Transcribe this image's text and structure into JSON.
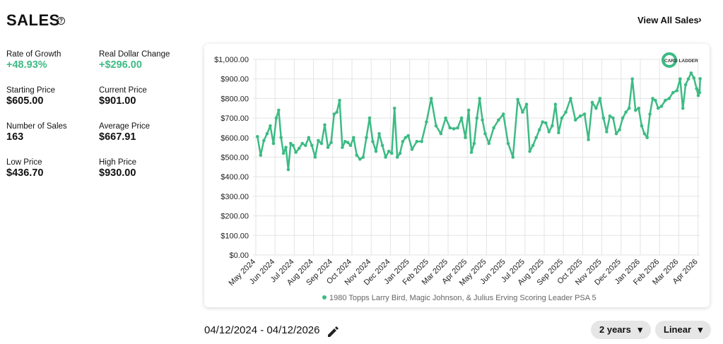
{
  "header": {
    "title": "SALES",
    "link": "View All Sales"
  },
  "stats": [
    {
      "label": "Rate of Growth",
      "value": "+48.93%"
    },
    {
      "label": "Real Dollar Change",
      "value": "+$296.00"
    },
    {
      "label": "Starting Price",
      "value": "$605.00"
    },
    {
      "label": "Current Price",
      "value": "$901.00"
    },
    {
      "label": "Number of Sales",
      "value": "163"
    },
    {
      "label": "Average Price",
      "value": "$667.91"
    },
    {
      "label": "Low Price",
      "value": "$436.70"
    },
    {
      "label": "High Price",
      "value": "$930.00"
    }
  ],
  "chart_data": {
    "type": "line",
    "logo": "CARD LADDER",
    "x": [
      "May 2024",
      "May 2024",
      "May 2024",
      "May 2024",
      "May 2024",
      "May 2024",
      "Jun 2024",
      "Jun 2024",
      "Jun 2024",
      "Jun 2024",
      "Jun 2024",
      "Jun 2024",
      "Jun 2024",
      "Jun 2024",
      "Jul 2024",
      "Jul 2024",
      "Jul 2024",
      "Jul 2024",
      "Jul 2024",
      "Jul 2024",
      "Aug 2024",
      "Aug 2024",
      "Aug 2024",
      "Aug 2024",
      "Aug 2024",
      "Aug 2024",
      "Sep 2024",
      "Sep 2024",
      "Sep 2024",
      "Sep 2024",
      "Sep 2024",
      "Sep 2024",
      "Sep 2024",
      "Oct 2024",
      "Oct 2024",
      "Oct 2024",
      "Oct 2024",
      "Oct 2024",
      "Oct 2024",
      "Nov 2024",
      "Nov 2024",
      "Nov 2024",
      "Nov 2024",
      "Nov 2024",
      "Nov 2024",
      "Dec 2024",
      "Dec 2024",
      "Dec 2024",
      "Dec 2024",
      "Dec 2024",
      "Dec 2024",
      "Dec 2024",
      "Jan 2025",
      "Jan 2025",
      "Jan 2025",
      "Jan 2025",
      "Feb 2025",
      "Feb 2025",
      "Feb 2025",
      "Feb 2025",
      "Mar 2025",
      "Mar 2025",
      "Mar 2025",
      "Mar 2025",
      "Mar 2025",
      "Apr 2025",
      "Apr 2025",
      "Apr 2025",
      "Apr 2025",
      "Apr 2025",
      "Apr 2025",
      "Apr 2025",
      "May 2025",
      "May 2025",
      "May 2025",
      "May 2025",
      "Jun 2025",
      "Jun 2025",
      "Jun 2025",
      "Jun 2025",
      "Jul 2025",
      "Jul 2025",
      "Jul 2025",
      "Jul 2025",
      "Jul 2025",
      "Jul 2025",
      "Aug 2025",
      "Aug 2025",
      "Aug 2025",
      "Aug 2025",
      "Aug 2025",
      "Aug 2025",
      "Sep 2025",
      "Sep 2025",
      "Sep 2025",
      "Sep 2025",
      "Oct 2025",
      "Oct 2025",
      "Oct 2025",
      "Oct 2025",
      "Oct 2025",
      "Nov 2025",
      "Nov 2025",
      "Nov 2025",
      "Nov 2025",
      "Nov 2025",
      "Nov 2025",
      "Dec 2025",
      "Dec 2025",
      "Dec 2025",
      "Dec 2025",
      "Dec 2025",
      "Dec 2025",
      "Jan 2026",
      "Jan 2026",
      "Jan 2026",
      "Jan 2026",
      "Jan 2026",
      "Jan 2026",
      "Jan 2026",
      "Feb 2026",
      "Feb 2026",
      "Feb 2026",
      "Feb 2026",
      "Feb 2026",
      "Mar 2026",
      "Mar 2026",
      "Mar 2026",
      "Mar 2026",
      "Mar 2026",
      "Mar 2026",
      "Mar 2026",
      "Apr 2026",
      "Apr 2026",
      "Apr 2026",
      "Apr 2026"
    ],
    "series": [
      {
        "name": "1980 Topps Larry Bird, Magic Johnson, & Julius Erving Scoring Leader PSA 5",
        "color": "#3dbb84",
        "values": [
          605,
          510,
          585,
          620,
          660,
          570,
          700,
          740,
          600,
          520,
          550,
          436.7,
          570,
          560,
          525,
          545,
          570,
          560,
          600,
          560,
          500,
          585,
          570,
          665,
          550,
          575,
          720,
          730,
          790,
          550,
          580,
          575,
          560,
          600,
          510,
          490,
          500,
          600,
          700,
          580,
          530,
          620,
          560,
          500,
          530,
          520,
          750,
          500,
          520,
          580,
          600,
          610,
          540,
          580,
          580,
          680,
          800,
          660,
          620,
          700,
          650,
          645,
          650,
          700,
          600,
          740,
          525,
          570,
          700,
          800,
          690,
          620,
          570,
          650,
          690,
          720,
          570,
          500,
          795,
          730,
          770,
          530,
          560,
          600,
          640,
          680,
          675,
          630,
          660,
          770,
          625,
          700,
          730,
          800,
          690,
          710,
          720,
          590,
          780,
          750,
          800,
          700,
          630,
          710,
          700,
          620,
          640,
          700,
          730,
          750,
          900,
          740,
          750,
          660,
          620,
          600,
          720,
          800,
          790,
          750,
          760,
          790,
          800,
          830,
          840,
          900,
          750,
          870,
          900,
          930,
          905,
          850,
          815,
          840,
          830,
          901
        ]
      }
    ],
    "xticks": [
      "May 2024",
      "Jun 2024",
      "Jul 2024",
      "Aug 2024",
      "Sep 2024",
      "Oct 2024",
      "Nov 2024",
      "Dec 2024",
      "Jan 2025",
      "Feb 2025",
      "Mar 2025",
      "Apr 2025",
      "May 2025",
      "Jun 2025",
      "Jul 2025",
      "Aug 2025",
      "Sep 2025",
      "Oct 2025",
      "Nov 2025",
      "Dec 2025",
      "Jan 2026",
      "Feb 2026",
      "Mar 2026",
      "Apr 2026"
    ],
    "ylim": [
      0,
      1000
    ],
    "yticks": [
      {
        "value": 0,
        "label": "$0.00"
      },
      {
        "value": 100,
        "label": "$100.00"
      },
      {
        "value": 200,
        "label": "$200.00"
      },
      {
        "value": 300,
        "label": "$300.00"
      },
      {
        "value": 400,
        "label": "$400.00"
      },
      {
        "value": 500,
        "label": "$500.00"
      },
      {
        "value": 600,
        "label": "$600.00"
      },
      {
        "value": 700,
        "label": "$700.00"
      },
      {
        "value": 800,
        "label": "$800.00"
      },
      {
        "value": 900,
        "label": "$900.00"
      },
      {
        "value": 1000,
        "label": "$1,000.00"
      }
    ],
    "grid": true
  },
  "footer": {
    "date_range": "04/12/2024 - 04/12/2026",
    "buttons": [
      "2 years",
      "Linear"
    ]
  }
}
